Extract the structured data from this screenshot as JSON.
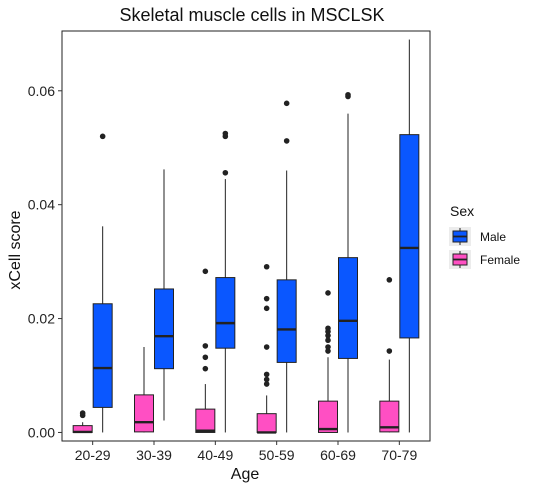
{
  "chart_data": {
    "type": "boxplot",
    "title": "Skeletal muscle cells in MSCLSK",
    "xlabel": "Age",
    "ylabel": "xCell score",
    "categories": [
      "20-29",
      "30-39",
      "40-49",
      "50-59",
      "60-69",
      "70-79"
    ],
    "ylim": [
      -0.0015,
      0.0705
    ],
    "yticks": [
      0.0,
      0.02,
      0.04,
      0.06
    ],
    "ytick_labels": [
      "0.00",
      "0.02",
      "0.04",
      "0.06"
    ],
    "grid": false,
    "legend": {
      "title": "Sex",
      "position": "right",
      "entries": [
        "Male",
        "Female"
      ]
    },
    "colors": {
      "Male": "#0a57ff",
      "Female": "#ff4fc3"
    },
    "series": [
      {
        "name": "Female",
        "boxes": [
          {
            "whisker_low": 0.0,
            "q1": 0.0,
            "median": 0.0001,
            "q3": 0.0012,
            "whisker_high": 0.0018,
            "outliers": [
              0.003,
              0.0034
            ]
          },
          {
            "whisker_low": 0.0,
            "q1": 0.0001,
            "median": 0.0018,
            "q3": 0.0066,
            "whisker_high": 0.015,
            "outliers": []
          },
          {
            "whisker_low": 0.0,
            "q1": 0.0,
            "median": 0.0003,
            "q3": 0.0041,
            "whisker_high": 0.0085,
            "outliers": [
              0.0112,
              0.0132,
              0.0152,
              0.0283
            ]
          },
          {
            "whisker_low": 0.0,
            "q1": 0.0,
            "median": 0.0,
            "q3": 0.0033,
            "whisker_high": 0.0065,
            "outliers": [
              0.0085,
              0.0093,
              0.0102,
              0.015,
              0.0218,
              0.0235,
              0.0291
            ]
          },
          {
            "whisker_low": 0.0,
            "q1": 0.0,
            "median": 0.0006,
            "q3": 0.0055,
            "whisker_high": 0.0132,
            "outliers": [
              0.0143,
              0.015,
              0.0162,
              0.017,
              0.0177,
              0.0183,
              0.0245
            ]
          },
          {
            "whisker_low": 0.0,
            "q1": 0.0001,
            "median": 0.0009,
            "q3": 0.0055,
            "whisker_high": 0.0128,
            "outliers": [
              0.0143,
              0.0268
            ]
          }
        ]
      },
      {
        "name": "Male",
        "boxes": [
          {
            "whisker_low": 0.0,
            "q1": 0.0044,
            "median": 0.0113,
            "q3": 0.0226,
            "whisker_high": 0.0362,
            "outliers": [
              0.052
            ]
          },
          {
            "whisker_low": 0.0021,
            "q1": 0.0112,
            "median": 0.0169,
            "q3": 0.0252,
            "whisker_high": 0.0462,
            "outliers": []
          },
          {
            "whisker_low": 0.0,
            "q1": 0.0148,
            "median": 0.0192,
            "q3": 0.0272,
            "whisker_high": 0.0445,
            "outliers": [
              0.0456,
              0.052,
              0.0525
            ]
          },
          {
            "whisker_low": 0.0,
            "q1": 0.0123,
            "median": 0.0181,
            "q3": 0.0268,
            "whisker_high": 0.046,
            "outliers": [
              0.0512,
              0.0578
            ]
          },
          {
            "whisker_low": 0.0,
            "q1": 0.013,
            "median": 0.0196,
            "q3": 0.0307,
            "whisker_high": 0.056,
            "outliers": [
              0.059,
              0.0593
            ]
          },
          {
            "whisker_low": 0.0,
            "q1": 0.0166,
            "median": 0.0324,
            "q3": 0.0523,
            "whisker_high": 0.069,
            "outliers": []
          }
        ]
      }
    ]
  }
}
